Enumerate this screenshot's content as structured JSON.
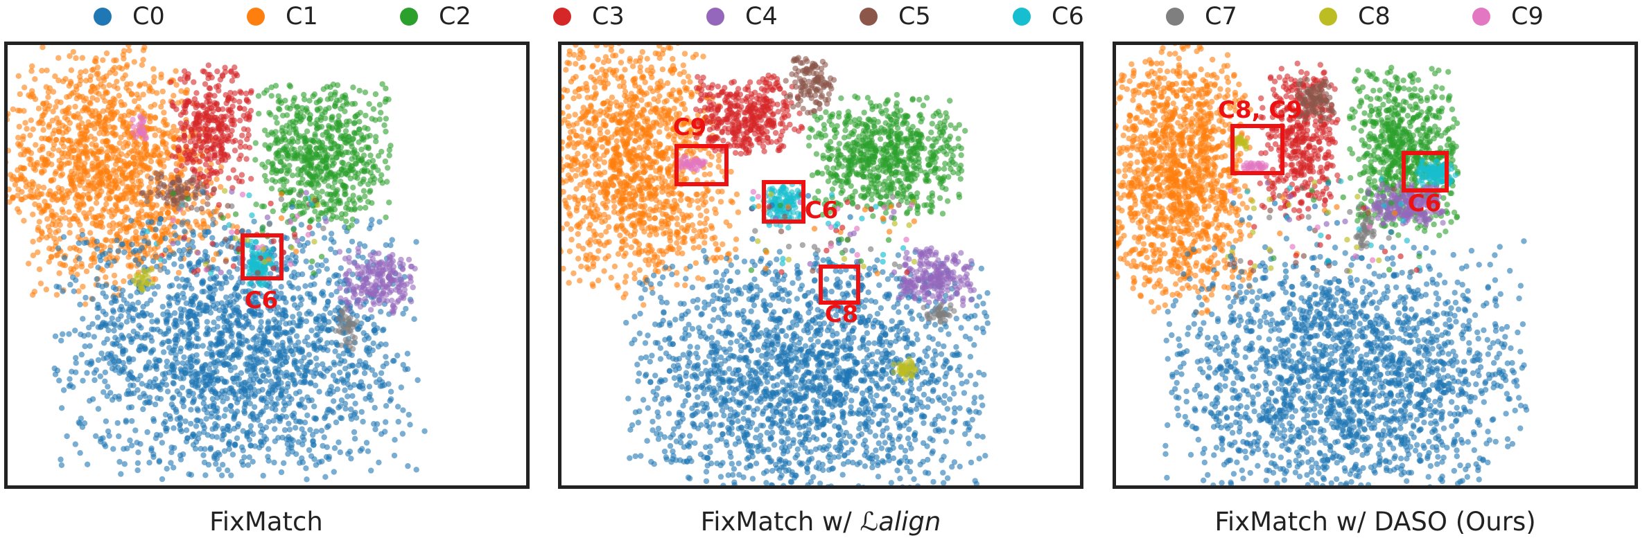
{
  "legend": {
    "classes": [
      {
        "label": "C0",
        "color": "#1f77b4"
      },
      {
        "label": "C1",
        "color": "#ff7f0e"
      },
      {
        "label": "C2",
        "color": "#2ca02c"
      },
      {
        "label": "C3",
        "color": "#d62728"
      },
      {
        "label": "C4",
        "color": "#9467bd"
      },
      {
        "label": "C5",
        "color": "#8c564b"
      },
      {
        "label": "C6",
        "color": "#17becf"
      },
      {
        "label": "C7",
        "color": "#7f7f7f"
      },
      {
        "label": "C8",
        "color": "#bcbd22"
      },
      {
        "label": "C9",
        "color": "#e377c2"
      }
    ]
  },
  "panels": [
    {
      "title": "FixMatch",
      "title_suffix": "",
      "callouts": [
        {
          "label": "C6"
        }
      ]
    },
    {
      "title": "FixMatch w/ ",
      "title_suffix": "ℒalign",
      "callouts": [
        {
          "label": "C9"
        },
        {
          "label": "C6"
        },
        {
          "label": "C8"
        }
      ]
    },
    {
      "title": "FixMatch w/ DASO (Ours)",
      "title_suffix": "",
      "callouts": [
        {
          "label": "C8, C9"
        },
        {
          "label": "C6"
        }
      ]
    }
  ],
  "chart_data": {
    "type": "scatter",
    "description_of_values": "2-D t-SNE feature embeddings colored by class; axes unlabeled",
    "classes": [
      "C0",
      "C1",
      "C2",
      "C3",
      "C4",
      "C5",
      "C6",
      "C7",
      "C8",
      "C9"
    ],
    "highlight_color": "#ee1111",
    "grid": false,
    "legend_position": "top"
  }
}
